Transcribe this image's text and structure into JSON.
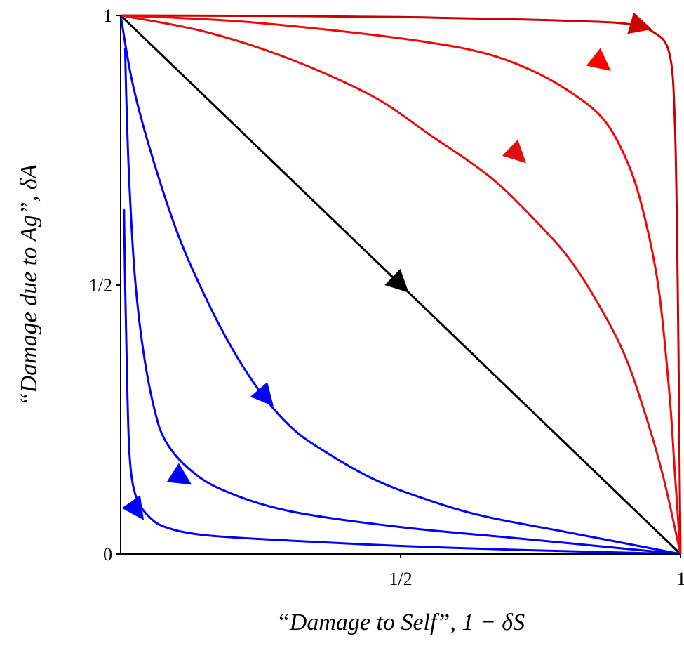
{
  "chart_data": {
    "type": "line",
    "title": "",
    "xlabel": "“Damage to Self”, 1 − δS",
    "ylabel": "“Damage due to Ag”, δA",
    "xlim": [
      0,
      1
    ],
    "ylim": [
      0,
      1
    ],
    "x_ticks": [
      "1/2",
      "1"
    ],
    "y_ticks": [
      "0",
      "1/2",
      "1"
    ],
    "grid": false,
    "legend": "none",
    "series": [
      {
        "color": "#000000",
        "points": [
          [
            0,
            1
          ],
          [
            1,
            0
          ]
        ],
        "arrow_at": [
          0.5,
          0.5
        ]
      },
      {
        "color": "#cc0000",
        "points": [
          [
            0,
            1
          ],
          [
            0.3,
            0.999
          ],
          [
            0.5,
            0.997
          ],
          [
            0.6,
            0.995
          ],
          [
            0.7,
            0.993
          ],
          [
            0.8,
            0.99
          ],
          [
            0.9,
            0.985
          ],
          [
            0.95,
            0.97
          ],
          [
            0.98,
            0.93
          ],
          [
            0.99,
            0.8
          ],
          [
            0.995,
            0.5
          ],
          [
            0.998,
            0.2
          ],
          [
            1,
            0
          ]
        ],
        "arrow_at": [
          0.93,
          0.98
        ]
      },
      {
        "color": "#ff0000",
        "points": [
          [
            0,
            1
          ],
          [
            0.2,
            0.99
          ],
          [
            0.4,
            0.97
          ],
          [
            0.55,
            0.95
          ],
          [
            0.65,
            0.93
          ],
          [
            0.73,
            0.9
          ],
          [
            0.8,
            0.86
          ],
          [
            0.86,
            0.81
          ],
          [
            0.9,
            0.74
          ],
          [
            0.93,
            0.65
          ],
          [
            0.96,
            0.5
          ],
          [
            0.98,
            0.3
          ],
          [
            0.99,
            0.15
          ],
          [
            1,
            0
          ]
        ],
        "arrow_at": [
          0.86,
          0.91
        ]
      },
      {
        "color": "#dd1111",
        "points": [
          [
            0,
            1
          ],
          [
            0.15,
            0.97
          ],
          [
            0.3,
            0.92
          ],
          [
            0.45,
            0.85
          ],
          [
            0.55,
            0.78
          ],
          [
            0.66,
            0.7
          ],
          [
            0.74,
            0.62
          ],
          [
            0.8,
            0.55
          ],
          [
            0.85,
            0.47
          ],
          [
            0.9,
            0.37
          ],
          [
            0.94,
            0.25
          ],
          [
            0.97,
            0.14
          ],
          [
            1,
            0
          ]
        ],
        "arrow_at": [
          0.71,
          0.74
        ]
      },
      {
        "color": "#0000ff",
        "points": [
          [
            0,
            1
          ],
          [
            0.02,
            0.88
          ],
          [
            0.05,
            0.76
          ],
          [
            0.1,
            0.6
          ],
          [
            0.15,
            0.48
          ],
          [
            0.2,
            0.38
          ],
          [
            0.25,
            0.3
          ],
          [
            0.3,
            0.24
          ],
          [
            0.35,
            0.2
          ],
          [
            0.45,
            0.14
          ],
          [
            0.55,
            0.1
          ],
          [
            0.65,
            0.07
          ],
          [
            0.8,
            0.04
          ],
          [
            1,
            0
          ]
        ],
        "arrow_at": [
          0.26,
          0.29
        ]
      },
      {
        "color": "#0000ff",
        "points": [
          [
            0.008,
            0.94
          ],
          [
            0.01,
            0.85
          ],
          [
            0.015,
            0.7
          ],
          [
            0.025,
            0.52
          ],
          [
            0.04,
            0.38
          ],
          [
            0.06,
            0.27
          ],
          [
            0.08,
            0.21
          ],
          [
            0.12,
            0.16
          ],
          [
            0.18,
            0.12
          ],
          [
            0.3,
            0.08
          ],
          [
            0.5,
            0.05
          ],
          [
            0.7,
            0.03
          ],
          [
            0.85,
            0.015
          ],
          [
            1,
            0
          ]
        ],
        "arrow_at": [
          0.11,
          0.14
        ]
      },
      {
        "color": "#0000ff",
        "points": [
          [
            0.006,
            0.64
          ],
          [
            0.008,
            0.5
          ],
          [
            0.01,
            0.4
          ],
          [
            0.012,
            0.3
          ],
          [
            0.015,
            0.2
          ],
          [
            0.02,
            0.14
          ],
          [
            0.03,
            0.1
          ],
          [
            0.05,
            0.07
          ],
          [
            0.08,
            0.05
          ],
          [
            0.15,
            0.035
          ],
          [
            0.3,
            0.025
          ],
          [
            0.5,
            0.015
          ],
          [
            0.7,
            0.008
          ],
          [
            1,
            0
          ]
        ],
        "arrow_at": [
          0.03,
          0.08
        ]
      }
    ]
  }
}
